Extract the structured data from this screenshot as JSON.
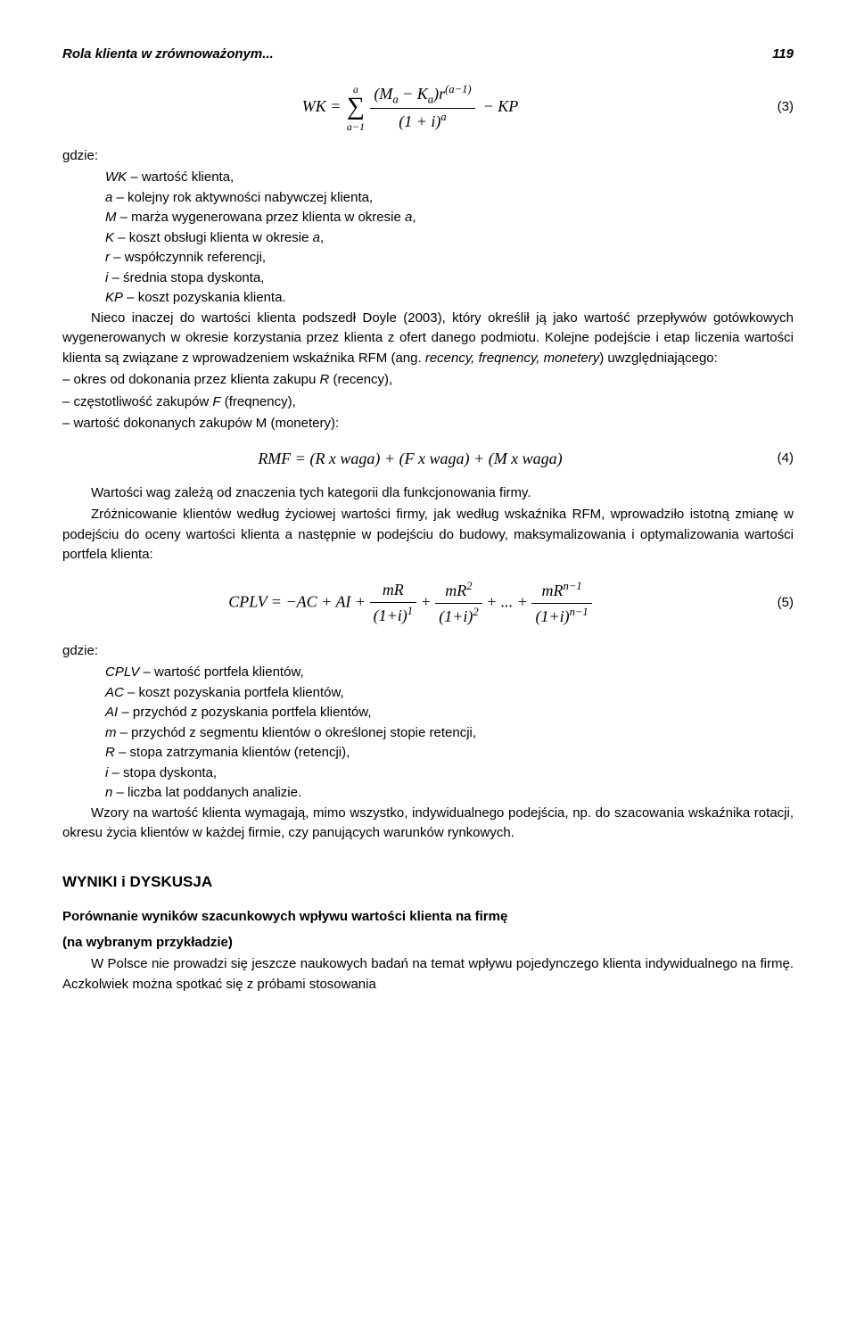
{
  "header": {
    "title": "Rola klienta w zrównoważonym...",
    "page": "119"
  },
  "eq3": {
    "num": "(3)"
  },
  "gdzie1": "gdzie:",
  "defs1": {
    "l1a": "WK",
    "l1b": " – wartość klienta,",
    "l2a": "a",
    "l2b": " – kolejny rok aktywności nabywczej klienta,",
    "l3a": "M",
    "l3b": " – marża wygenerowana przez klienta w okresie ",
    "l3c": "a",
    "l3d": ",",
    "l4a": "K",
    "l4b": " – koszt obsługi klienta w okresie ",
    "l4c": "a",
    "l4d": ",",
    "l5a": "r",
    "l5b": " – współczynnik referencji,",
    "l6a": "i",
    "l6b": " – średnia stopa dyskonta,",
    "l7a": "KP",
    "l7b": " – koszt pozyskania klienta."
  },
  "p1": "Nieco inaczej do wartości klienta podszedł Doyle (2003), który określił ją jako wartość przepływów gotówkowych wygenerowanych w okresie korzystania przez klienta z ofert danego podmiotu. Kolejne podejście i etap liczenia wartości klienta są związane z wprowadzeniem wskaźnika RFM (ang. ",
  "p1i": "recency, freqnency, monetery",
  "p1b": ") uwzględniającego:",
  "dash1a": "– okres od dokonania przez klienta zakupu ",
  "dash1b": "R",
  "dash1c": " (recency),",
  "dash2a": "– częstotliwość zakupów ",
  "dash2b": "F",
  "dash2c": " (freqnency),",
  "dash3": "– wartość dokonanych zakupów M (monetery):",
  "eq4text": "RMF = (R x waga) + (F x waga) + (M x waga)",
  "eq4num": "(4)",
  "p2": "Wartości wag zależą od znaczenia tych kategorii dla funkcjonowania firmy.",
  "p3": "Zróżnicowanie klientów według życiowej wartości firmy, jak według wskaźnika RFM, wprowadziło istotną zmianę w podejściu do oceny wartości klienta a następnie w podejściu do budowy, maksymalizowania i optymalizowania wartości portfela klienta:",
  "eq5num": "(5)",
  "gdzie2": "gdzie:",
  "defs2": {
    "l1a": "CPLV",
    "l1b": " – wartość portfela klientów,",
    "l2a": "AC",
    "l2b": " – koszt pozyskania portfela klientów,",
    "l3a": "AI",
    "l3b": " – przychód z pozyskania portfela klientów,",
    "l4a": "m",
    "l4b": " – przychód z segmentu klientów o określonej stopie retencji,",
    "l5a": "R",
    "l5b": " – stopa zatrzymania klientów (retencji),",
    "l6a": "i",
    "l6b": " – stopa dyskonta,",
    "l7a": "n",
    "l7b": " – liczba lat poddanych analizie."
  },
  "p4": "Wzory na wartość klienta wymagają, mimo wszystko, indywidualnego podejścia, np. do szacowania wskaźnika rotacji, okresu życia klientów w każdej firmie, czy panujących warunków rynkowych.",
  "h2": "WYNIKI i DYSKUSJA",
  "sub1": "Porównanie wyników szacunkowych wpływu wartości klienta na firmę",
  "sub2": "(na wybranym przykładzie)",
  "p5": "W Polsce nie prowadzi się jeszcze naukowych badań na temat wpływu pojedynczego klienta indywidualnego na firmę. Aczkolwiek można spotkać się z próbami stosowania"
}
